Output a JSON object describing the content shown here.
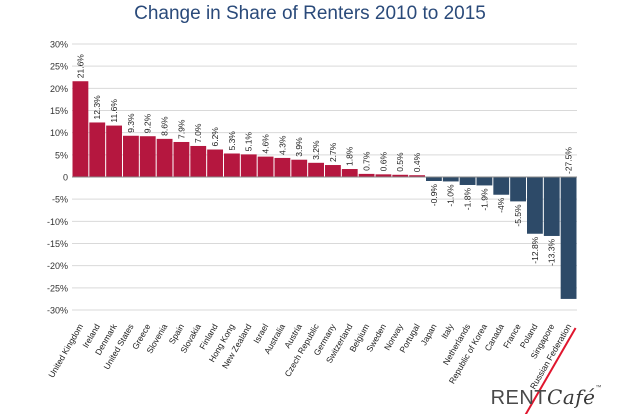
{
  "chart_data": {
    "type": "bar",
    "title": "Change in Share of Renters 2010 to 2015",
    "xlabel": "",
    "ylabel": "",
    "ylim": [
      -30,
      30
    ],
    "yticks": [
      "30%",
      "25%",
      "20%",
      "15%",
      "10%",
      "5%",
      "0",
      "-5%",
      "-10%",
      "-15%",
      "-20%",
      "-25%",
      "-30%"
    ],
    "ytick_values": [
      30,
      25,
      20,
      15,
      10,
      5,
      0,
      -5,
      -10,
      -15,
      -20,
      -25,
      -30
    ],
    "categories": [
      "United Kingdom",
      "Ireland",
      "Denmark",
      "United States",
      "Greece",
      "Slovenia",
      "Spain",
      "Slovakia",
      "Finland",
      "Hong Kong",
      "New Zealand",
      "Israel",
      "Australia",
      "Austria",
      "Czech Republic",
      "Germany",
      "Switzerland",
      "Belgium",
      "Sweden",
      "Norway",
      "Portugal",
      "Japan",
      "Italy",
      "Netherlands",
      "Republic of Korea",
      "Canada",
      "France",
      "Poland",
      "Singapore",
      "Russian Federation"
    ],
    "values": [
      21.6,
      12.3,
      11.6,
      9.3,
      9.2,
      8.6,
      7.9,
      7.0,
      6.2,
      5.3,
      5.1,
      4.6,
      4.3,
      3.9,
      3.2,
      2.7,
      1.8,
      0.7,
      0.6,
      0.5,
      0.4,
      -0.9,
      -1.0,
      -1.8,
      -1.9,
      -4,
      -5.5,
      -12.8,
      -13.3,
      -27.5
    ],
    "labels": [
      "21.6%",
      "12.3%",
      "11.6%",
      "9.3%",
      "9.2%",
      "8.6%",
      "7.9%",
      "7.0%",
      "6.2%",
      "5.3%",
      "5.1%",
      "4.6%",
      "4.3%",
      "3.9%",
      "3.2%",
      "2.7%",
      "1.8%",
      "0.7%",
      "0.6%",
      "0.5%",
      "0.4%",
      "-0.9%",
      "-1.0%",
      "-1.8%",
      "-1.9%",
      "-4%",
      "-5.5%",
      "-12.8%",
      "-13.3%",
      "-27.5%"
    ],
    "colors": {
      "positive": "#b5173f",
      "negative": "#2d4a68",
      "grid": "#d9d9d9",
      "highlight": "#e0162e"
    }
  },
  "brand": {
    "rent": "RENT",
    "cafe": "Café",
    "tm": "™"
  }
}
